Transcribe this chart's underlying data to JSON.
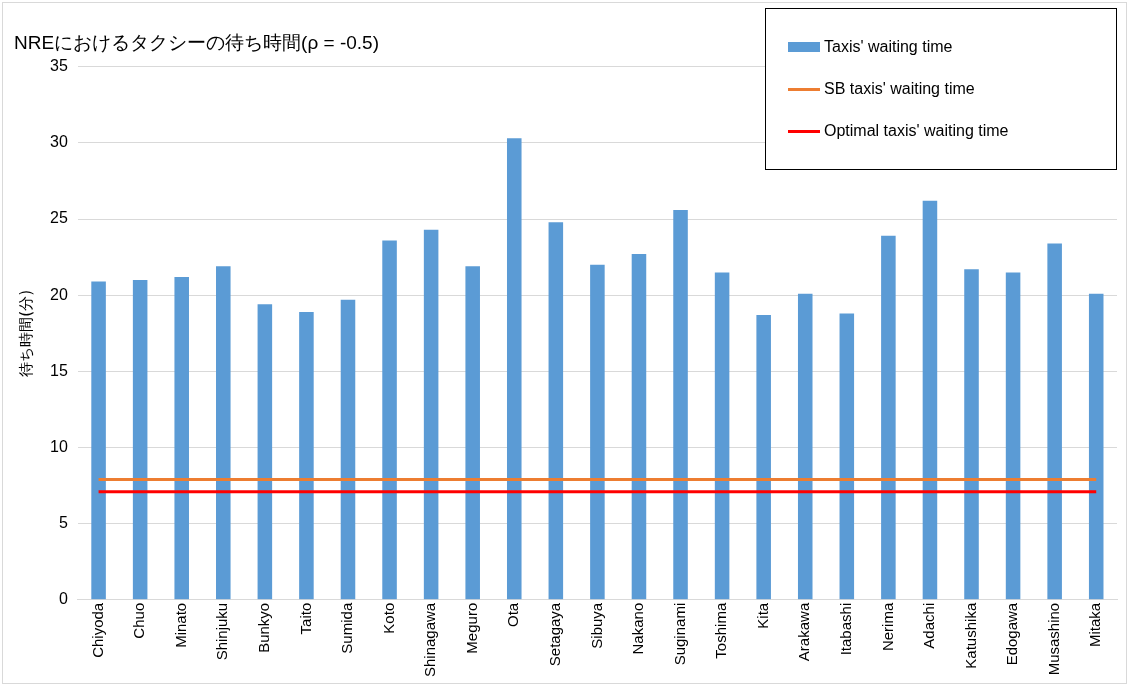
{
  "chart_data": {
    "type": "bar",
    "title": "NREにおけるタクシーの待ち時間(ρ = -0.5)",
    "ylabel": "待ち時間(分)",
    "categories": [
      "Chiyoda",
      "Chuo",
      "Minato",
      "Shinjuku",
      "Bunkyo",
      "Taito",
      "Sumida",
      "Koto",
      "Shinagawa",
      "Meguro",
      "Ota",
      "Setagaya",
      "Sibuya",
      "Nakano",
      "Suginami",
      "Toshima",
      "Kita",
      "Arakawa",
      "Itabashi",
      "Nerima",
      "Adachi",
      "Katushika",
      "Edogawa",
      "Musashino",
      "Mitaka"
    ],
    "series": [
      {
        "name": "Taxis' waiting time",
        "color": "#5b9bd5",
        "values": [
          20.9,
          21.0,
          21.2,
          21.9,
          19.4,
          18.9,
          19.7,
          23.6,
          24.3,
          21.9,
          30.3,
          24.8,
          22.0,
          22.7,
          25.6,
          21.5,
          18.7,
          20.1,
          18.8,
          23.9,
          26.2,
          21.7,
          21.5,
          23.4,
          20.1
        ]
      },
      {
        "name": "SB taxis' waiting time",
        "type": "line",
        "color": "#ed7d31",
        "values": [
          7.9,
          7.9,
          7.9,
          7.9,
          7.9,
          7.9,
          7.9,
          7.9,
          7.9,
          7.9,
          7.9,
          7.9,
          7.9,
          7.9,
          7.9,
          7.9,
          7.9,
          7.9,
          7.9,
          7.9,
          7.9,
          7.9,
          7.9,
          7.9,
          7.9
        ]
      },
      {
        "name": "Optimal taxis' waiting time",
        "type": "line",
        "color": "#ff0000",
        "values": [
          7.1,
          7.1,
          7.1,
          7.1,
          7.1,
          7.1,
          7.1,
          7.1,
          7.1,
          7.1,
          7.1,
          7.1,
          7.1,
          7.1,
          7.1,
          7.1,
          7.1,
          7.1,
          7.1,
          7.1,
          7.1,
          7.1,
          7.1,
          7.1,
          7.1
        ]
      }
    ],
    "ylim": [
      0,
      35
    ],
    "yticks": [
      0,
      5,
      10,
      15,
      20,
      25,
      30,
      35
    ],
    "grid": "y",
    "legend": "top right",
    "marker": "none",
    "line_style": "solid"
  }
}
